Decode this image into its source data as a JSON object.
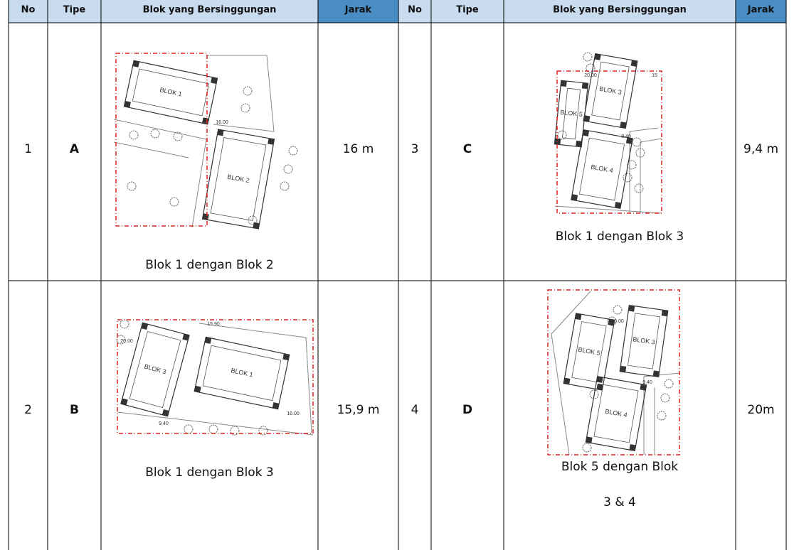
{
  "table": {
    "header": [
      "No",
      "Tipe",
      "Blok yang Bersinggungan",
      "Jarak",
      "No",
      "Tipe",
      "Blok yang Bersinggungan",
      "Jarak"
    ],
    "entries": [
      {
        "no": "1",
        "tipe": "A",
        "caption": [
          "Blok 1 dengan Blok 2"
        ],
        "jarak": "16 m",
        "plan_labels": [
          "BLOK 1",
          "BLOK 2",
          "16.00"
        ]
      },
      {
        "no": "2",
        "tipe": "B",
        "caption": [
          "Blok 1 dengan Blok 3"
        ],
        "jarak": "15,9 m",
        "plan_labels": [
          "BLOK 3",
          "BLOK 1",
          "15.90",
          "20.00",
          "16.00",
          "9.40"
        ]
      },
      {
        "no": "3",
        "tipe": "C",
        "caption": [
          "Blok 1 dengan Blok 3"
        ],
        "jarak": "9,4 m",
        "plan_labels": [
          "BLOK 3",
          "BLOK 5",
          "BLOK 4",
          "20.00",
          "9.40",
          "15"
        ]
      },
      {
        "no": "4",
        "tipe": "D",
        "caption": [
          "Blok 5 dengan Blok",
          "3 & 4"
        ],
        "jarak": "20m",
        "plan_labels": [
          "BLOK 5",
          "BLOK 3",
          "BLOK 4",
          "20.00",
          "9.40"
        ]
      }
    ]
  }
}
